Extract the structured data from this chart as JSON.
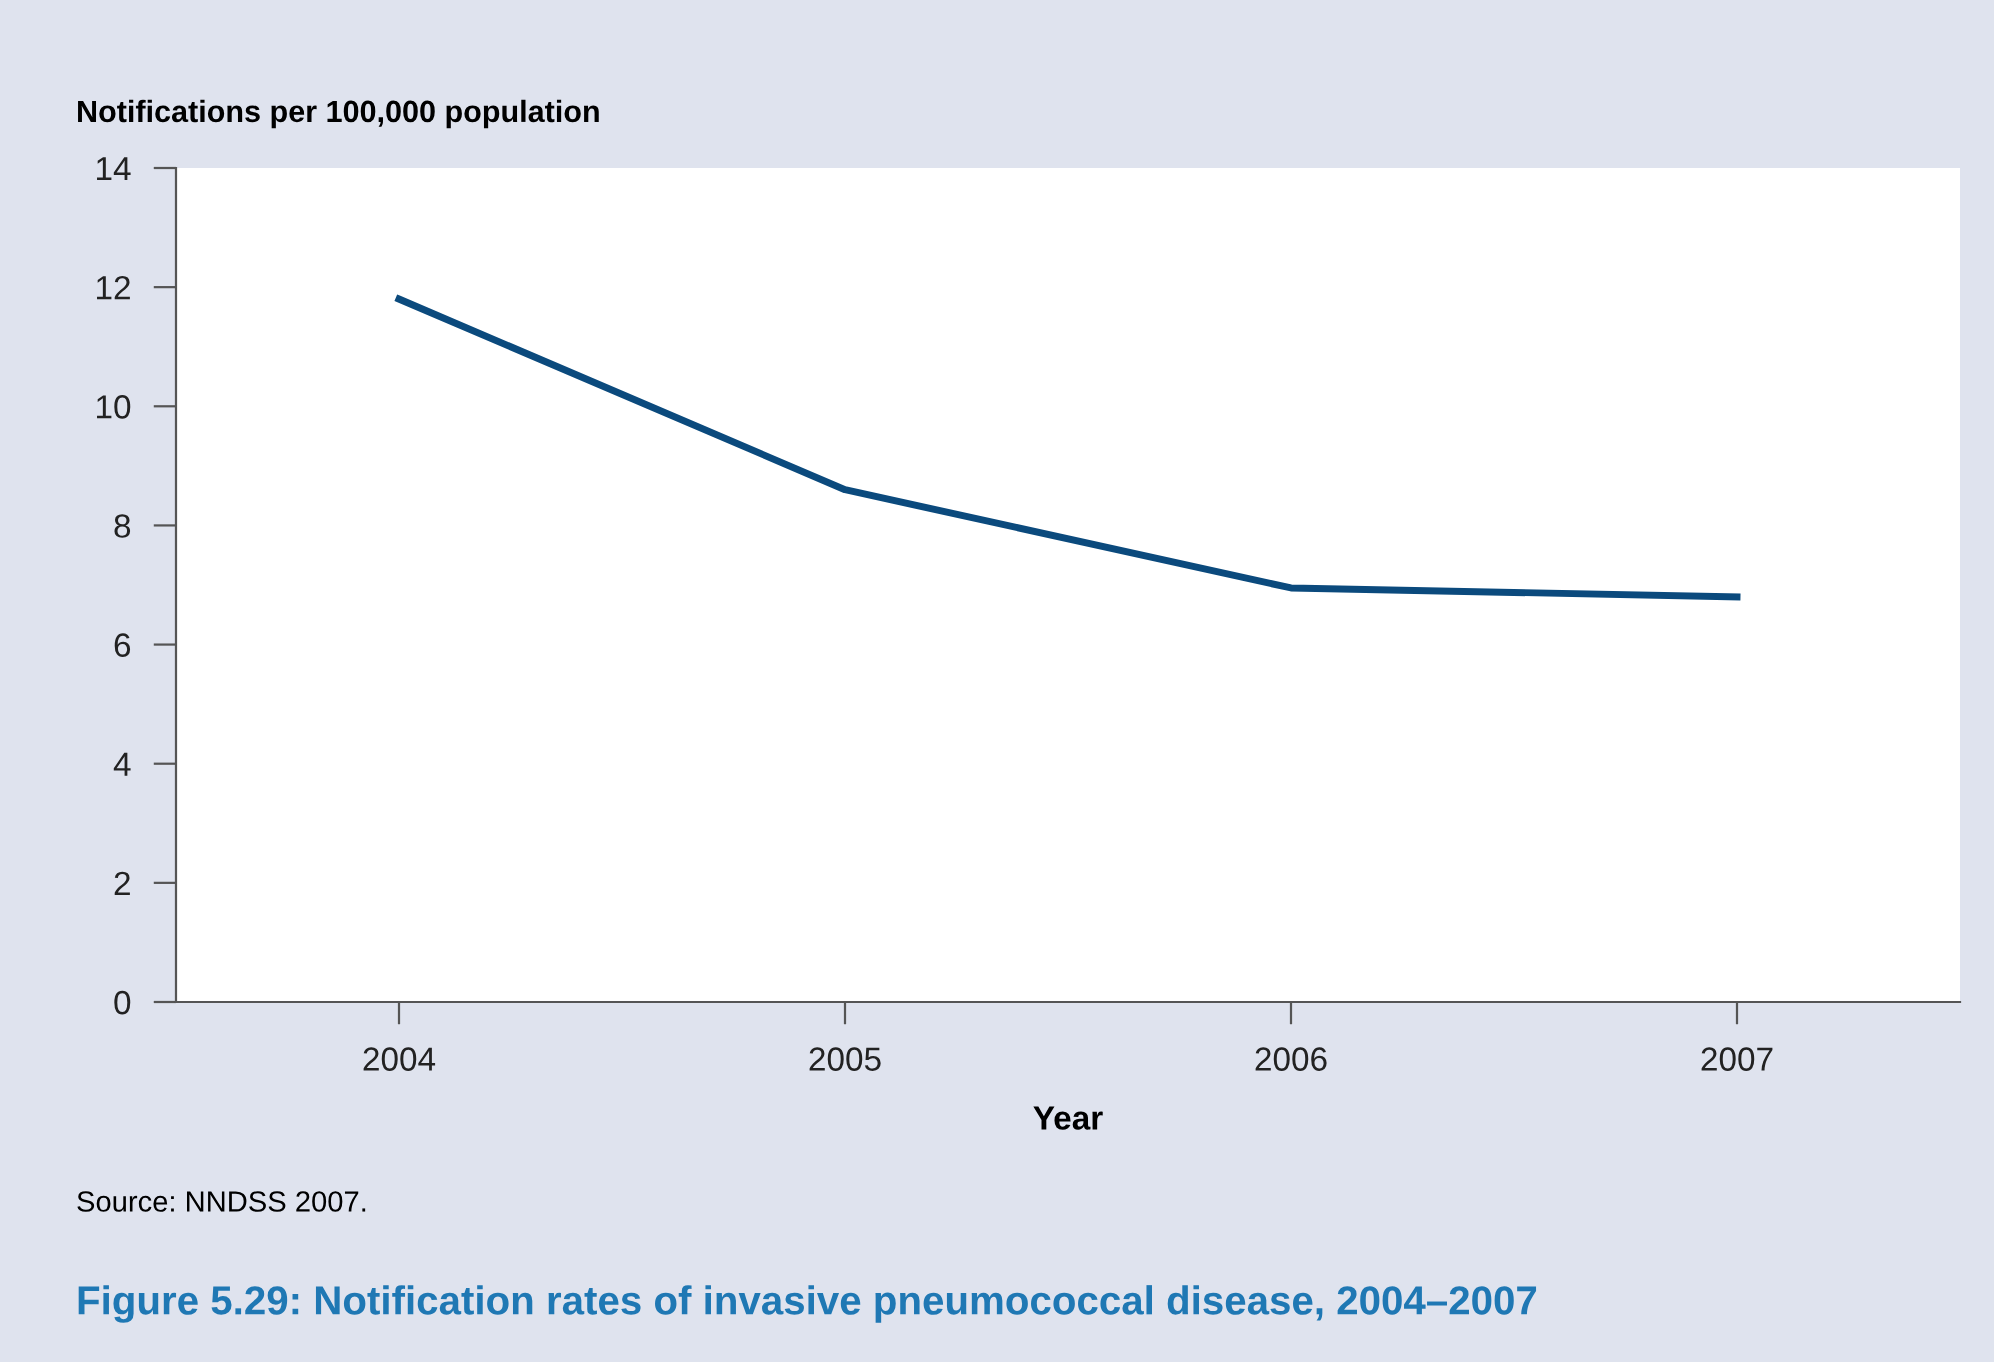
{
  "chart_data": {
    "type": "line",
    "title": "Figure 5.29: Notification rates of invasive pneumococcal disease, 2004–2007",
    "ylabel": "Notifications per 100,000 population",
    "xlabel": "Year",
    "categories": [
      "2004",
      "2005",
      "2006",
      "2007"
    ],
    "series": [
      {
        "color": "#0b4a7d",
        "values": [
          11.8,
          8.6,
          6.95,
          6.8
        ]
      }
    ],
    "ylim": [
      0,
      14
    ],
    "yticks": [
      0,
      2,
      4,
      6,
      8,
      10,
      12,
      14
    ],
    "grid": false,
    "marker": "none",
    "line_style": "solid",
    "annotations": [
      "Source: NNDSS 2007."
    ]
  }
}
